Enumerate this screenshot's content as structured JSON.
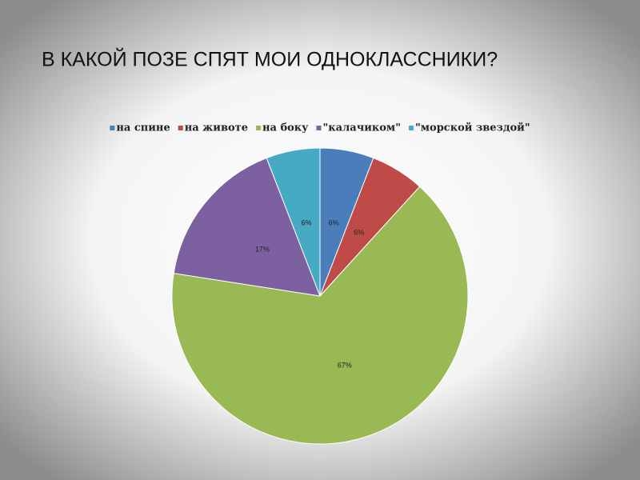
{
  "chart_data": {
    "type": "pie",
    "title": "В КАКОЙ ПОЗЕ СПЯТ МОИ ОДНОКЛАССНИКИ?",
    "categories": [
      "на спине",
      "на животе",
      "на боку",
      "\"калачиком\"",
      "\"морской звездой\""
    ],
    "values": [
      6,
      6,
      67,
      17,
      6
    ],
    "value_labels": [
      "6%",
      "6%",
      "67%",
      "17%",
      "6%"
    ],
    "colors": [
      "#4a7ebb",
      "#be4b48",
      "#98b954",
      "#7d60a0",
      "#46aac5"
    ],
    "legend": "top"
  }
}
